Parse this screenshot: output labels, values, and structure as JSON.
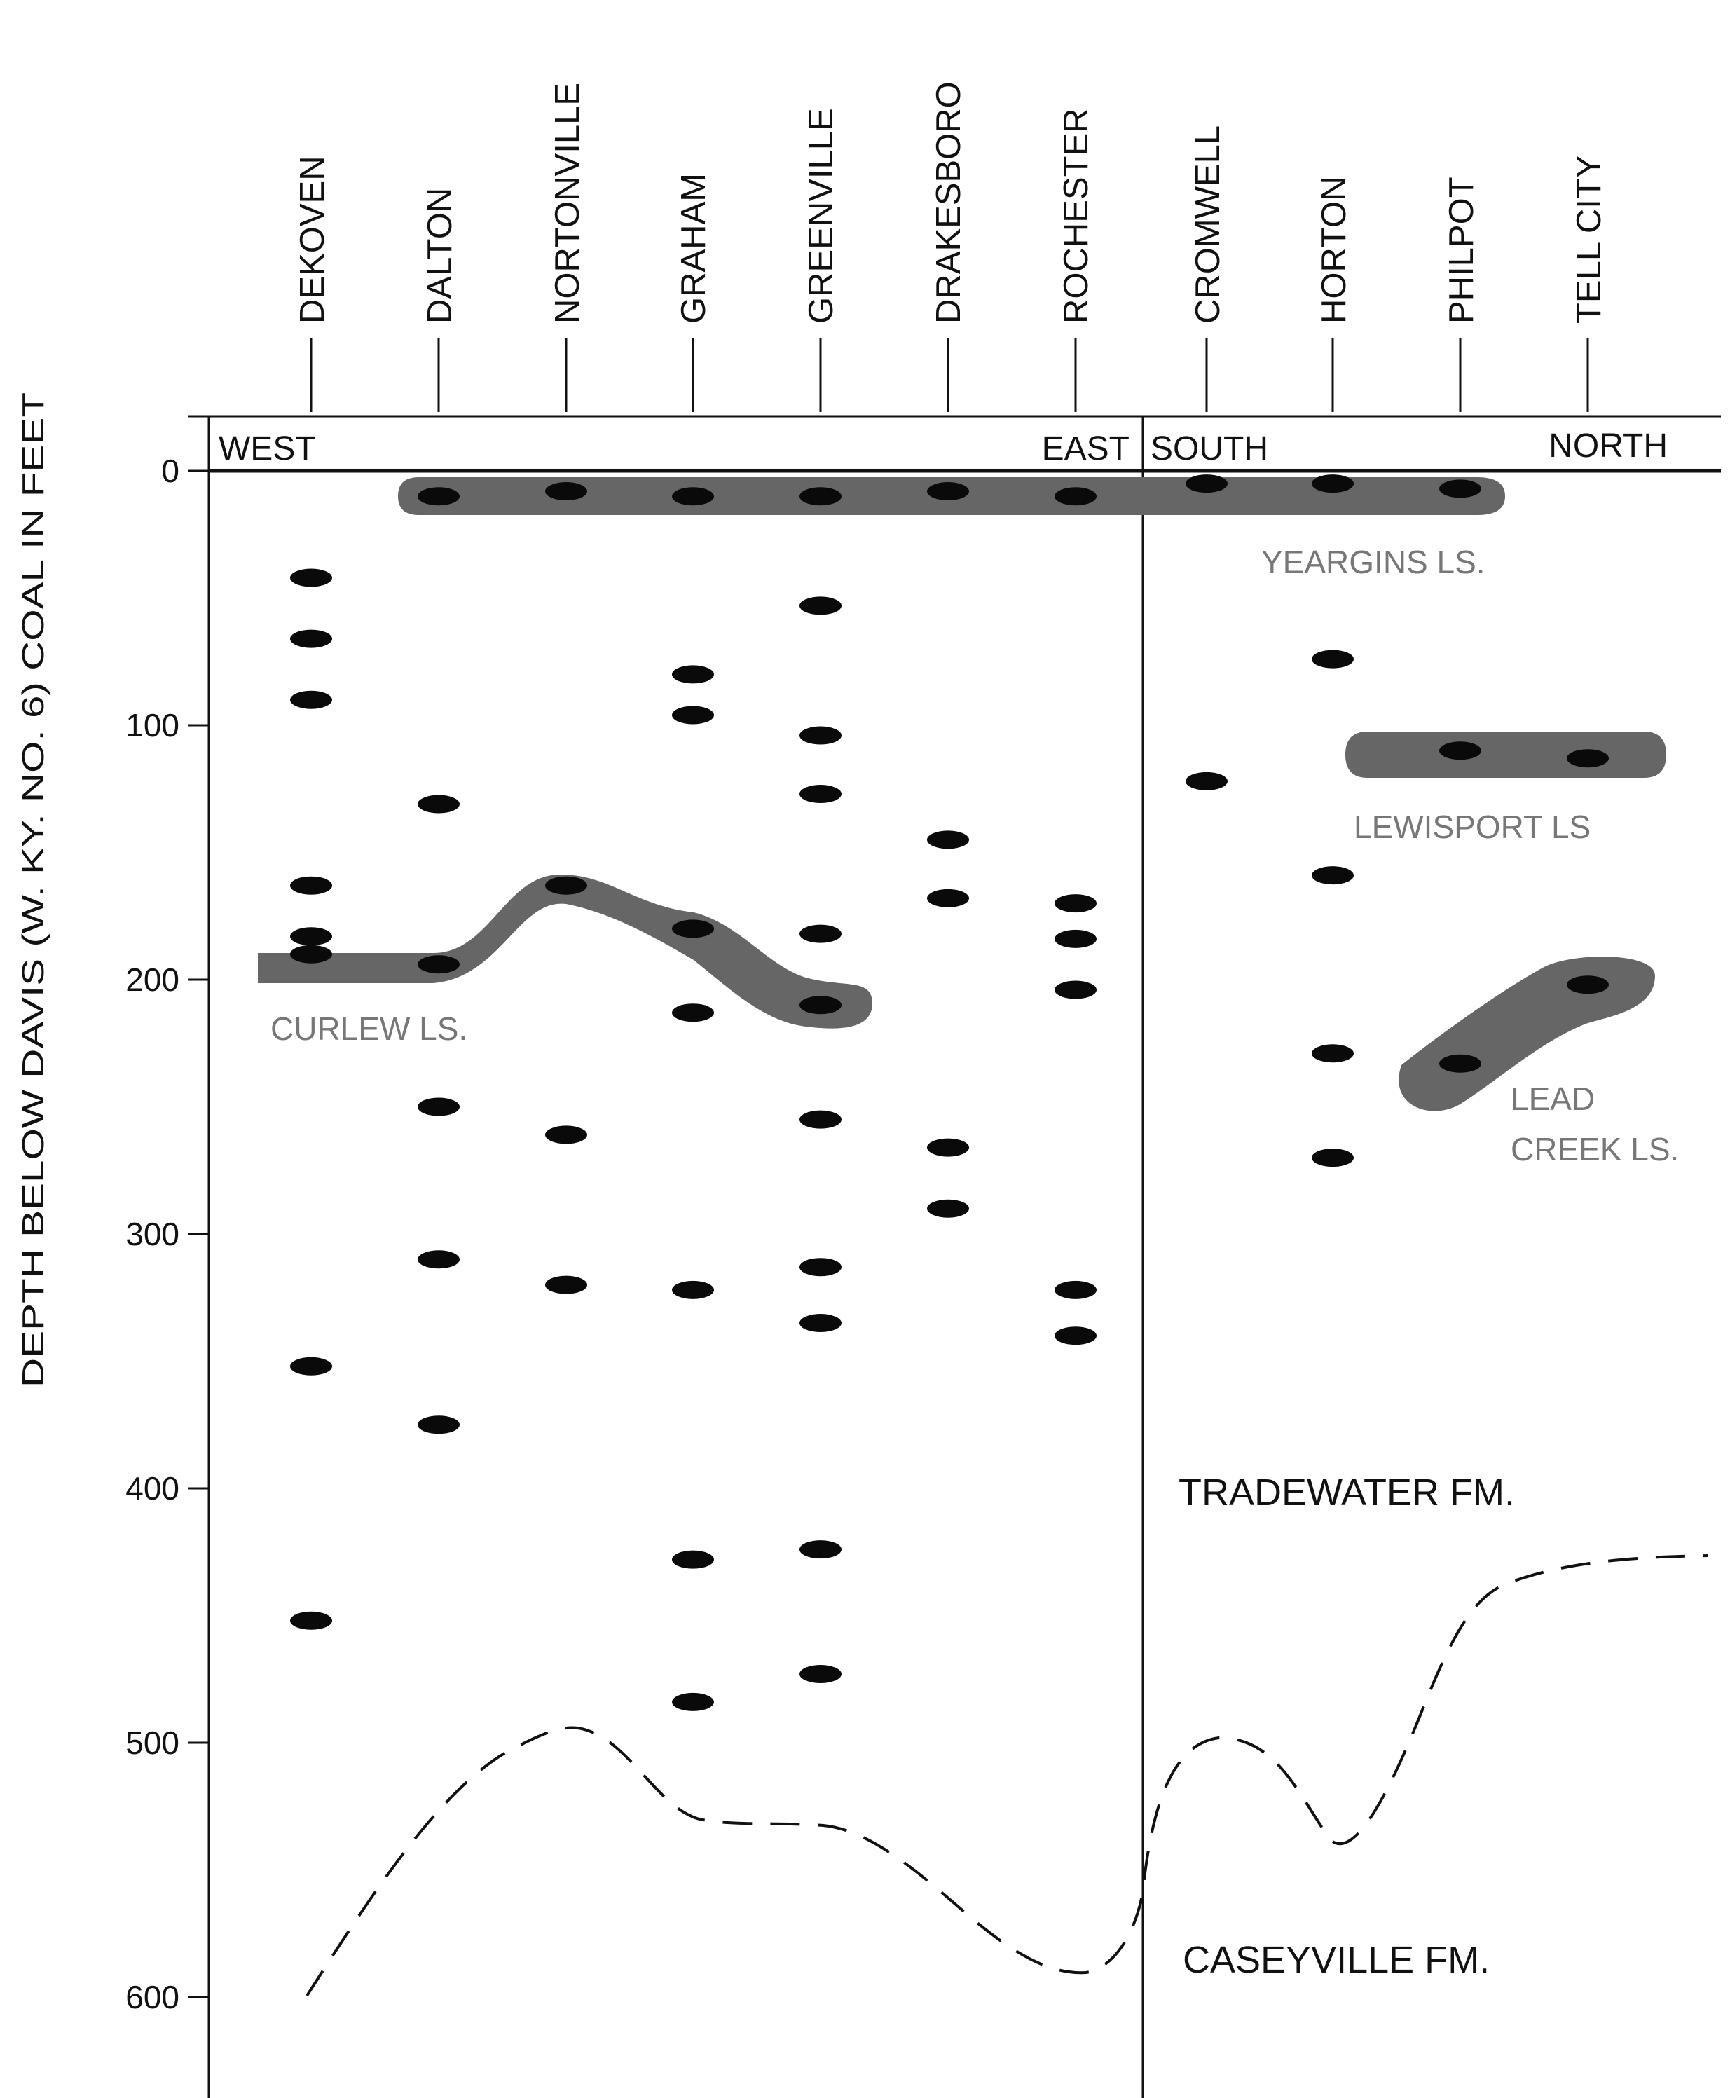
{
  "axis": {
    "title": "DEPTH BELOW DAVIS (W. KY. NO. 6) COAL IN FEET",
    "ticks": [
      "0",
      "100",
      "200",
      "300",
      "400",
      "500",
      "600"
    ]
  },
  "directions": {
    "west": "WEST",
    "east": "EAST",
    "south": "SOUTH",
    "north": "NORTH"
  },
  "localities": [
    {
      "name": "DEKOVEN",
      "coal_depths": [
        42,
        66,
        90,
        163,
        183,
        190,
        352,
        452
      ]
    },
    {
      "name": "DALTON",
      "coal_depths": [
        10,
        131,
        194,
        250,
        310,
        375
      ]
    },
    {
      "name": "NORTONVILLE",
      "coal_depths": [
        8,
        163,
        261,
        320
      ]
    },
    {
      "name": "GRAHAM",
      "coal_depths": [
        10,
        80,
        96,
        180,
        213,
        322,
        428,
        484
      ]
    },
    {
      "name": "GREENVILLE",
      "coal_depths": [
        10,
        53,
        104,
        127,
        182,
        210,
        255,
        313,
        335,
        424,
        473
      ]
    },
    {
      "name": "DRAKESBORO",
      "coal_depths": [
        8,
        145,
        168,
        266,
        290
      ]
    },
    {
      "name": "ROCHESTER",
      "coal_depths": [
        10,
        170,
        184,
        204,
        322,
        340
      ]
    },
    {
      "name": "CROMWELL",
      "coal_depths": [
        5,
        122
      ]
    },
    {
      "name": "HORTON",
      "coal_depths": [
        5,
        74,
        159,
        229,
        270
      ]
    },
    {
      "name": "PHILPOT",
      "coal_depths": [
        7,
        110,
        233
      ]
    },
    {
      "name": "TELL CITY",
      "coal_depths": [
        113,
        202
      ]
    }
  ],
  "units": {
    "yeargins": "YEARGINS LS.",
    "lewisport": "LEWISPORT LS",
    "curlew": "CURLEW LS.",
    "lead_creek_line1": "LEAD",
    "lead_creek_line2": "CREEK LS."
  },
  "formations": {
    "upper": "TRADEWATER FM.",
    "lower": "CASEYVILLE FM."
  },
  "colors": {
    "coal": "#0a0a0a",
    "limestone_band": "#666666",
    "unit_label": "#777777",
    "line": "#111111"
  }
}
